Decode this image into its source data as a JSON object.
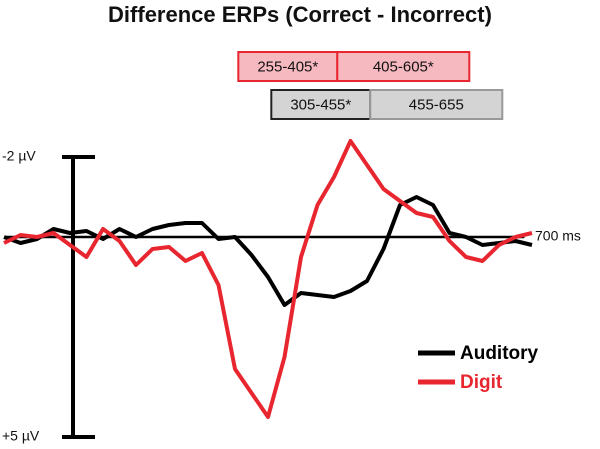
{
  "chart_data": {
    "type": "line",
    "title": "Difference ERPs (Correct - Incorrect)",
    "x": [
      -100,
      -75,
      -50,
      -25,
      0,
      25,
      50,
      75,
      100,
      125,
      150,
      175,
      200,
      225,
      250,
      275,
      300,
      325,
      350,
      375,
      400,
      425,
      450,
      475,
      500,
      525,
      550,
      575,
      600,
      625,
      650,
      675,
      700
    ],
    "series": [
      {
        "name": "Auditory",
        "color": "#000000",
        "values": [
          0,
          0.15,
          0.05,
          -0.2,
          -0.1,
          -0.15,
          0.05,
          -0.2,
          0,
          -0.2,
          -0.3,
          -0.35,
          -0.35,
          0.05,
          0,
          0.45,
          1.0,
          1.7,
          1.4,
          1.45,
          1.5,
          1.35,
          1.1,
          0.3,
          -0.8,
          -1.0,
          -0.8,
          -0.1,
          0,
          0.2,
          0.15,
          0.1,
          0.2
        ]
      },
      {
        "name": "Digit",
        "color": "#e8262f",
        "values": [
          0.15,
          -0.05,
          0,
          -0.1,
          0.2,
          0.5,
          -0.2,
          0.1,
          0.7,
          0.3,
          0.25,
          0.6,
          0.4,
          1.2,
          3.3,
          3.9,
          4.5,
          3.0,
          0.5,
          -0.8,
          -1.5,
          -2.4,
          -1.8,
          -1.2,
          -0.9,
          -0.6,
          -0.5,
          0.1,
          0.5,
          0.6,
          0.2,
          0,
          -0.1
        ]
      }
    ],
    "xlim": [
      -100,
      700
    ],
    "xticks": [
      {
        "value": 700,
        "label": "700 ms"
      }
    ],
    "ylim": [
      -2,
      5
    ],
    "yticks": [
      {
        "value": -2,
        "label": "-2 µV"
      },
      {
        "value": 5,
        "label": "+5 µV"
      }
    ],
    "y_inverted": true,
    "windows": [
      {
        "label": "255-405*",
        "start": 255,
        "end": 405,
        "fill": "#f7b9c0",
        "stroke": "#e8262f",
        "row": 0
      },
      {
        "label": "405-605*",
        "start": 405,
        "end": 605,
        "fill": "#f7b9c0",
        "stroke": "#e8262f",
        "row": 0
      },
      {
        "label": "305-455*",
        "start": 305,
        "end": 455,
        "fill": "#d4d4d4",
        "stroke": "#222222",
        "row": 1
      },
      {
        "label": "455-655",
        "start": 455,
        "end": 655,
        "fill": "#d4d4d4",
        "stroke": "#999999",
        "row": 1
      }
    ]
  }
}
